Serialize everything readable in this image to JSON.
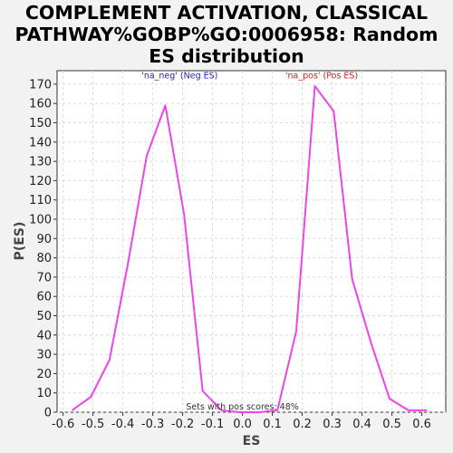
{
  "chart_data": {
    "type": "line",
    "title_lines": [
      "COMPLEMENT ACTIVATION, CLASSICAL",
      "PATHWAY%GOBP%GO:0006958: Random",
      "ES distribution"
    ],
    "xlabel": "ES",
    "ylabel": "P(ES)",
    "xlim": [
      -0.62,
      0.68
    ],
    "ylim": [
      0,
      177
    ],
    "xticks": [
      -0.6,
      -0.5,
      -0.4,
      -0.3,
      -0.2,
      -0.1,
      0.0,
      0.1,
      0.2,
      0.3,
      0.4,
      0.5,
      0.6
    ],
    "xtick_labels": [
      "-0.6",
      "-0.5",
      "-0.4",
      "-0.3",
      "-0.2",
      "-0.1",
      "0.0",
      "0.1",
      "0.2",
      "0.3",
      "0.4",
      "0.5",
      "0.6"
    ],
    "yticks": [
      0,
      10,
      20,
      30,
      40,
      50,
      60,
      70,
      80,
      90,
      100,
      110,
      120,
      130,
      140,
      150,
      160,
      170
    ],
    "grid": true,
    "line_color": "#ee44ee",
    "series": [
      {
        "x": [
          -0.57,
          -0.507,
          -0.445,
          -0.383,
          -0.32,
          -0.258,
          -0.195,
          -0.133,
          -0.07,
          -0.008,
          0.055,
          0.117,
          0.18,
          0.242,
          0.305,
          0.367,
          0.43,
          0.492,
          0.555,
          0.617
        ],
        "y": [
          1,
          8,
          27,
          77,
          133,
          159,
          102,
          11,
          1,
          0,
          0,
          1,
          42,
          169,
          156,
          69,
          36,
          7,
          1,
          1
        ]
      }
    ],
    "annotations": [
      {
        "text": "'na_neg' (Neg ES)",
        "x": -0.21,
        "y": 173,
        "color": "#2222cc"
      },
      {
        "text": "'na_pos' (Pos ES)",
        "x": 0.265,
        "y": 173,
        "color": "#cc2222"
      },
      {
        "text": "Sets with pos scores: 48%",
        "x": 0.0,
        "y": 1.5,
        "color": "#333333"
      }
    ]
  }
}
